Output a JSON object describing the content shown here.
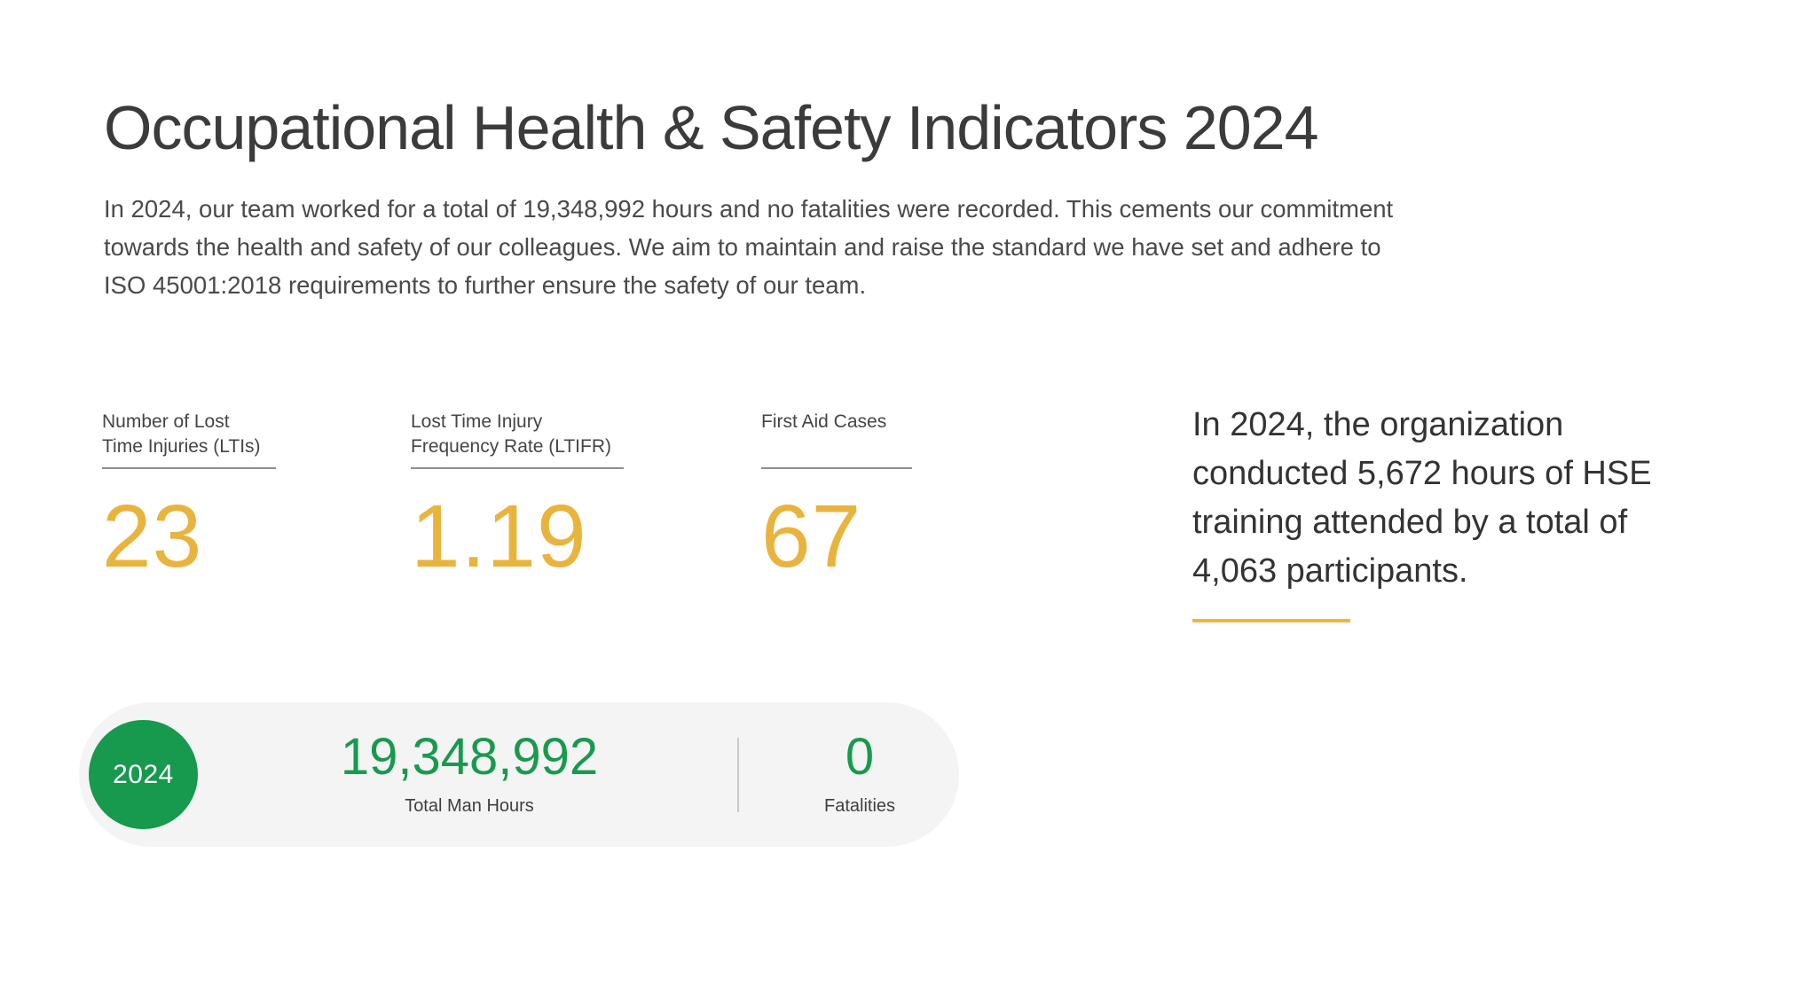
{
  "page": {
    "title": "Occupational Health & Safety Indicators 2024",
    "intro": "In 2024, our team worked for a total of 19,348,992 hours and no fatalities were recorded. This cements our commitment towards the health and safety of our colleagues. We aim to maintain and raise the standard we have set and adhere to ISO 45001:2018 requirements to further ensure the safety of our team."
  },
  "stats": [
    {
      "label_line1": "Number of Lost",
      "label_line2": "Time Injuries (LTIs)",
      "value": "23"
    },
    {
      "label_line1": "Lost Time Injury",
      "label_line2": "Frequency Rate (LTIFR)",
      "value": "1.19"
    },
    {
      "label_line1": "First Aid Cases",
      "label_line2": "",
      "value": "67"
    }
  ],
  "callout": {
    "text": "In 2024, the organization conducted 5,672 hours of HSE training attended by a total of 4,063 participants."
  },
  "summary": {
    "year": "2024",
    "man_hours_value": "19,348,992",
    "man_hours_label": "Total Man Hours",
    "fatalities_value": "0",
    "fatalities_label": "Fatalities"
  },
  "colors": {
    "accent_yellow": "#E9B43D",
    "accent_green": "#17994E",
    "pill_background": "#F4F4F4",
    "text_dark": "#3B3B3B"
  }
}
